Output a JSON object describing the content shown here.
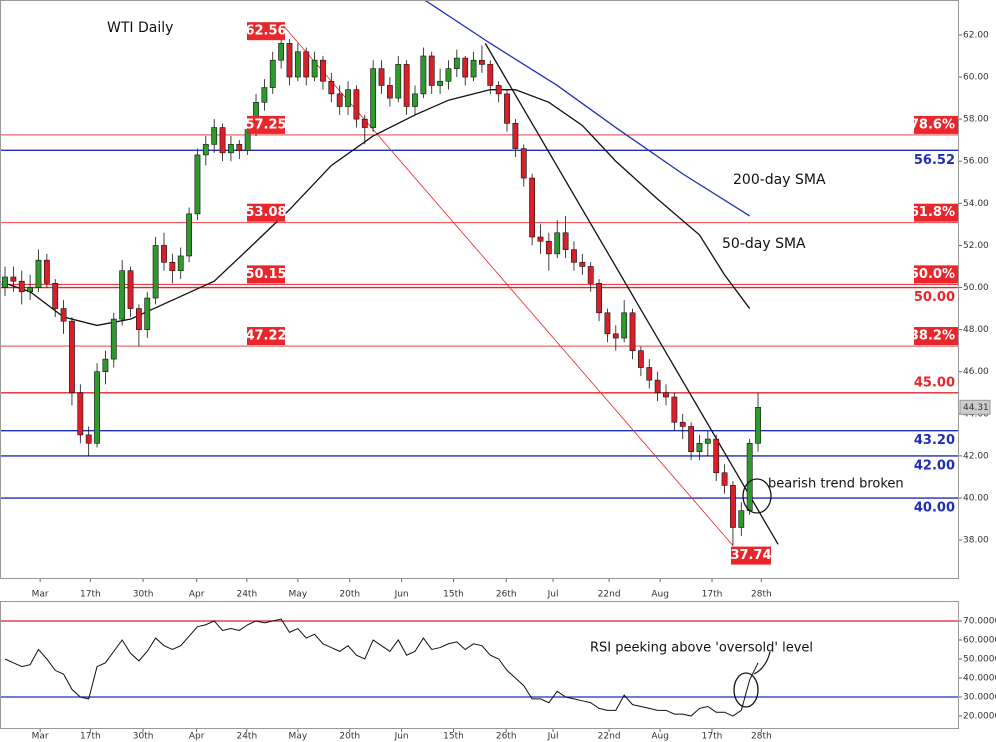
{
  "chart_data": {
    "type": "candlestick",
    "title": "WTI Daily",
    "up_color": "#2e9a2e",
    "down_color": "#d8202a",
    "xlim": [
      -0.6,
      113.9
    ],
    "xticks": [
      {
        "value": 4.2,
        "label": "Mar"
      },
      {
        "value": 10.2,
        "label": "17th"
      },
      {
        "value": 16.5,
        "label": "30th"
      },
      {
        "value": 22.9,
        "label": "Apr"
      },
      {
        "value": 28.9,
        "label": "24th"
      },
      {
        "value": 35.0,
        "label": "May"
      },
      {
        "value": 41.2,
        "label": "20th"
      },
      {
        "value": 47.4,
        "label": "Jun"
      },
      {
        "value": 53.6,
        "label": "15th"
      },
      {
        "value": 59.9,
        "label": "26th"
      },
      {
        "value": 65.5,
        "label": "Jul"
      },
      {
        "value": 72.2,
        "label": "22nd"
      },
      {
        "value": 78.3,
        "label": "Aug"
      },
      {
        "value": 84.5,
        "label": "17th"
      },
      {
        "value": 90.4,
        "label": "28th"
      }
    ],
    "ylim": [
      36.2,
      63.66
    ],
    "yticks": [
      {
        "value": 38,
        "label": "38.00"
      },
      {
        "value": 40,
        "label": "40.00"
      },
      {
        "value": 42,
        "label": "42.00"
      },
      {
        "value": 44,
        "label": "44.00"
      },
      {
        "value": 46,
        "label": "46.00"
      },
      {
        "value": 48,
        "label": "48.00"
      },
      {
        "value": 50,
        "label": "50.00"
      },
      {
        "value": 52,
        "label": "52.00"
      },
      {
        "value": 54,
        "label": "54.00"
      },
      {
        "value": 56,
        "label": "56.00"
      },
      {
        "value": 58,
        "label": "58.00"
      },
      {
        "value": 60,
        "label": "60.00"
      },
      {
        "value": 62,
        "label": "62.00"
      }
    ],
    "ohlc": [
      [
        50.0,
        51.0,
        49.6,
        50.5
      ],
      [
        50.5,
        51.0,
        49.8,
        50.3
      ],
      [
        50.3,
        50.8,
        49.2,
        49.8
      ],
      [
        49.8,
        50.6,
        49.4,
        50.0
      ],
      [
        50.0,
        51.8,
        49.8,
        51.3
      ],
      [
        51.3,
        51.6,
        50.0,
        50.2
      ],
      [
        50.2,
        50.4,
        48.6,
        49.0
      ],
      [
        49.0,
        49.4,
        47.8,
        48.4
      ],
      [
        48.4,
        48.6,
        44.4,
        45.0
      ],
      [
        45.0,
        45.4,
        42.6,
        43.0
      ],
      [
        43.0,
        43.4,
        42.0,
        42.6
      ],
      [
        42.6,
        46.4,
        42.4,
        46.0
      ],
      [
        46.0,
        47.0,
        45.4,
        46.6
      ],
      [
        46.6,
        48.8,
        46.2,
        48.5
      ],
      [
        48.5,
        51.3,
        48.2,
        50.8
      ],
      [
        50.8,
        51.0,
        48.6,
        49.0
      ],
      [
        49.0,
        49.2,
        47.2,
        48.0
      ],
      [
        48.0,
        49.8,
        47.6,
        49.5
      ],
      [
        49.5,
        52.4,
        49.2,
        52.0
      ],
      [
        52.0,
        52.6,
        50.8,
        51.2
      ],
      [
        51.2,
        51.6,
        50.2,
        50.8
      ],
      [
        50.8,
        51.9,
        50.4,
        51.5
      ],
      [
        51.5,
        53.8,
        51.2,
        53.5
      ],
      [
        53.5,
        56.6,
        53.2,
        56.3
      ],
      [
        56.3,
        57.2,
        55.8,
        56.8
      ],
      [
        56.8,
        58.0,
        56.4,
        57.6
      ],
      [
        57.6,
        57.8,
        56.0,
        56.4
      ],
      [
        56.4,
        57.2,
        56.0,
        56.8
      ],
      [
        56.8,
        57.0,
        56.1,
        56.5
      ],
      [
        56.5,
        57.9,
        56.3,
        57.5
      ],
      [
        57.5,
        59.2,
        57.2,
        58.8
      ],
      [
        58.8,
        59.9,
        58.4,
        59.5
      ],
      [
        59.5,
        61.2,
        59.2,
        60.8
      ],
      [
        60.8,
        62.56,
        60.4,
        61.6
      ],
      [
        61.6,
        61.8,
        59.6,
        60.0
      ],
      [
        60.0,
        61.6,
        59.8,
        61.2
      ],
      [
        61.2,
        61.4,
        59.6,
        60.0
      ],
      [
        60.0,
        61.2,
        59.8,
        60.8
      ],
      [
        60.8,
        61.0,
        59.4,
        59.8
      ],
      [
        59.8,
        60.2,
        58.8,
        59.2
      ],
      [
        59.2,
        59.6,
        58.2,
        58.6
      ],
      [
        58.6,
        59.8,
        58.2,
        59.4
      ],
      [
        59.4,
        59.6,
        57.6,
        58.0
      ],
      [
        58.0,
        58.2,
        56.8,
        57.6
      ],
      [
        57.6,
        60.8,
        57.4,
        60.4
      ],
      [
        60.4,
        60.8,
        59.2,
        59.6
      ],
      [
        59.6,
        60.0,
        58.6,
        59.0
      ],
      [
        59.0,
        61.0,
        58.8,
        60.6
      ],
      [
        60.6,
        60.8,
        58.2,
        58.6
      ],
      [
        58.6,
        59.6,
        58.2,
        59.2
      ],
      [
        59.2,
        61.4,
        59.0,
        61.0
      ],
      [
        61.0,
        61.2,
        59.2,
        59.6
      ],
      [
        59.6,
        60.4,
        59.2,
        59.8
      ],
      [
        59.8,
        60.8,
        59.4,
        60.4
      ],
      [
        60.4,
        61.3,
        60.0,
        60.9
      ],
      [
        60.9,
        61.0,
        59.6,
        60.0
      ],
      [
        60.0,
        61.2,
        59.8,
        60.8
      ],
      [
        60.8,
        61.5,
        60.2,
        60.6
      ],
      [
        60.6,
        60.8,
        59.2,
        59.6
      ],
      [
        59.6,
        59.8,
        58.8,
        59.2
      ],
      [
        59.2,
        59.4,
        57.4,
        57.8
      ],
      [
        57.8,
        58.0,
        56.2,
        56.6
      ],
      [
        56.6,
        56.8,
        54.8,
        55.2
      ],
      [
        55.2,
        55.4,
        52.0,
        52.4
      ],
      [
        52.4,
        53.0,
        51.6,
        52.2
      ],
      [
        52.2,
        52.6,
        50.8,
        51.6
      ],
      [
        51.6,
        53.2,
        51.4,
        52.6
      ],
      [
        52.6,
        53.4,
        51.4,
        51.8
      ],
      [
        51.8,
        52.2,
        50.8,
        51.2
      ],
      [
        51.2,
        51.6,
        50.6,
        51.0
      ],
      [
        51.0,
        51.2,
        49.8,
        50.2
      ],
      [
        50.2,
        50.4,
        48.4,
        48.8
      ],
      [
        48.8,
        49.0,
        47.4,
        47.8
      ],
      [
        47.8,
        48.2,
        47.0,
        47.6
      ],
      [
        47.6,
        49.4,
        47.4,
        48.8
      ],
      [
        48.8,
        49.0,
        46.6,
        47.0
      ],
      [
        47.0,
        47.2,
        45.8,
        46.2
      ],
      [
        46.2,
        46.6,
        45.2,
        45.6
      ],
      [
        45.6,
        46.0,
        44.6,
        45.0
      ],
      [
        45.0,
        45.4,
        44.4,
        44.8
      ],
      [
        44.8,
        45.0,
        43.2,
        43.6
      ],
      [
        43.6,
        44.0,
        42.8,
        43.4
      ],
      [
        43.4,
        43.6,
        41.8,
        42.2
      ],
      [
        42.2,
        43.0,
        41.8,
        42.6
      ],
      [
        42.6,
        43.2,
        42.0,
        42.8
      ],
      [
        42.8,
        43.0,
        40.8,
        41.2
      ],
      [
        41.2,
        41.6,
        40.2,
        40.6
      ],
      [
        40.6,
        40.8,
        37.74,
        38.6
      ],
      [
        38.6,
        39.8,
        38.2,
        39.4
      ],
      [
        39.4,
        42.8,
        39.2,
        42.6
      ],
      [
        42.6,
        45.0,
        42.2,
        44.31
      ]
    ],
    "sma": [
      {
        "name": "50-day SMA",
        "color": "#111111",
        "x": [
          0,
          3,
          7,
          11,
          15,
          20,
          25,
          29,
          34,
          39,
          44,
          49,
          53,
          58,
          61,
          65,
          69,
          73,
          78,
          83,
          86,
          89
        ],
        "values": [
          50.2,
          49.8,
          48.6,
          48.2,
          48.5,
          49.4,
          50.3,
          51.8,
          53.7,
          55.8,
          57.2,
          58.2,
          58.9,
          59.4,
          59.4,
          58.8,
          57.7,
          56.0,
          54.2,
          52.5,
          50.6,
          49.0
        ]
      },
      {
        "name": "200-day SMA",
        "color": "#1f2fb5",
        "x": [
          50,
          58,
          66,
          73,
          81,
          89
        ],
        "values": [
          63.7,
          61.6,
          59.6,
          57.6,
          55.4,
          53.4
        ]
      }
    ],
    "trendlines": [
      {
        "color": "#e8262b",
        "x": [
          33,
          87
        ],
        "values": [
          62.56,
          37.74
        ]
      },
      {
        "color": "#111111",
        "x": [
          57.4,
          92.4
        ],
        "values": [
          61.6,
          37.8
        ]
      }
    ],
    "fib_color": "#e8262b",
    "fib_levels": [
      {
        "value": 57.25,
        "ratio": "78.6%"
      },
      {
        "value": 53.08,
        "ratio": "61.8%"
      },
      {
        "value": 50.15,
        "ratio": "50.0%"
      },
      {
        "value": 47.22,
        "ratio": "38.2%"
      }
    ],
    "levels": [
      {
        "value": 56.52,
        "color": "#1f2fb5"
      },
      {
        "value": 50,
        "label": "50.00",
        "color": "#e8262b"
      },
      {
        "value": 45,
        "label": "45.00",
        "color": "#e8262b"
      },
      {
        "value": 43.2,
        "label": "43.20",
        "color": "#1f2fb5"
      },
      {
        "value": 42,
        "label": "42.00",
        "color": "#1f2fb5"
      },
      {
        "value": 40,
        "label": "40.00",
        "color": "#1f2fb5"
      }
    ],
    "annotation": "bearish trend broken",
    "rsi": {
      "ylim": [
        13.7,
        80.5
      ],
      "yticks": [
        {
          "value": 20,
          "label": "20.0000"
        },
        {
          "value": 30,
          "label": "30.0000"
        },
        {
          "value": 40,
          "label": "40.0000"
        },
        {
          "value": 50,
          "label": "50.0000"
        },
        {
          "value": 60,
          "label": "60.0000"
        },
        {
          "value": 70,
          "label": "70.0000"
        }
      ],
      "overbought": 70,
      "overbought_color": "#d8202a",
      "oversold": 30,
      "oversold_color": "#1f2fb5",
      "note": "RSI peeking above 'oversold' level",
      "values": [
        50,
        48,
        46,
        47,
        55,
        50,
        44,
        42,
        34,
        30,
        29,
        46,
        48,
        54,
        60,
        53,
        49,
        54,
        61,
        57,
        55,
        57,
        62,
        67,
        68,
        70,
        65,
        66,
        65,
        68,
        70,
        69,
        70,
        71,
        64,
        66,
        61,
        63,
        58,
        56,
        54,
        57,
        52,
        50,
        60,
        57,
        54,
        60,
        52,
        54,
        61,
        55,
        56,
        58,
        59,
        55,
        58,
        57,
        52,
        50,
        44,
        40,
        36,
        29,
        29,
        27,
        33,
        30,
        29,
        28,
        27,
        24,
        23,
        23,
        31,
        26,
        25,
        24,
        23,
        23,
        21,
        21,
        20,
        24,
        25,
        22,
        22,
        20,
        23,
        39,
        48
      ]
    }
  }
}
